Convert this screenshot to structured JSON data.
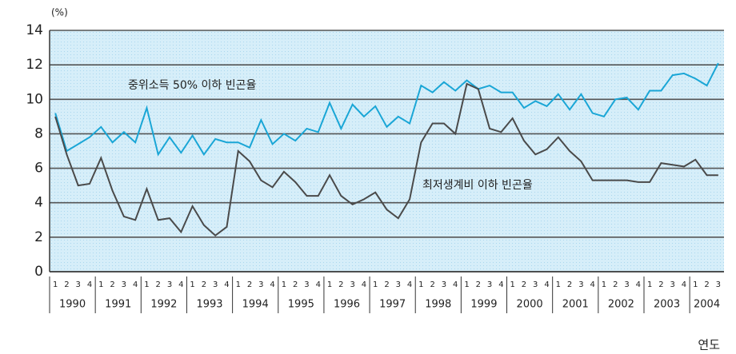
{
  "chart_data": {
    "type": "line",
    "y_unit": "(%)",
    "xlabel": "연도",
    "categories": [
      "1",
      "2",
      "3",
      "4",
      "1",
      "2",
      "3",
      "4",
      "1",
      "2",
      "3",
      "4",
      "1",
      "2",
      "3",
      "4",
      "1",
      "2",
      "3",
      "4",
      "1",
      "2",
      "3",
      "4",
      "1",
      "2",
      "3",
      "4",
      "1",
      "2",
      "3",
      "4",
      "1",
      "2",
      "3",
      "4",
      "1",
      "2",
      "3",
      "4",
      "1",
      "2",
      "3",
      "4",
      "1",
      "2",
      "3",
      "4",
      "1",
      "2",
      "3",
      "4",
      "1",
      "2",
      "3",
      "4",
      "1",
      "2",
      "3"
    ],
    "years": [
      "1990",
      "1991",
      "1992",
      "1993",
      "1994",
      "1995",
      "1996",
      "1997",
      "1998",
      "1999",
      "2000",
      "2001",
      "2002",
      "2003",
      "2004"
    ],
    "series": [
      {
        "name": "중위소득 50% 이하 빈곤율",
        "color": "#1aa6d6",
        "values": [
          9.2,
          7.0,
          7.4,
          7.8,
          8.4,
          7.5,
          8.1,
          7.5,
          9.5,
          6.8,
          7.8,
          6.9,
          7.9,
          6.8,
          7.7,
          7.5,
          7.5,
          7.2,
          8.8,
          7.4,
          8.0,
          7.6,
          8.3,
          8.1,
          9.8,
          8.3,
          9.7,
          9.0,
          9.6,
          8.4,
          9.0,
          8.6,
          10.8,
          10.4,
          11.0,
          10.5,
          11.1,
          10.6,
          10.8,
          10.4,
          10.4,
          9.5,
          9.9,
          9.6,
          10.3,
          9.4,
          10.3,
          9.2,
          9.0,
          10.0,
          10.1,
          9.4,
          10.5,
          10.5,
          11.4,
          11.5,
          11.2,
          10.8,
          12.1
        ]
      },
      {
        "name": "최저생계비 이하 빈곤율",
        "color": "#4a4a4a",
        "values": [
          9.0,
          6.8,
          5.0,
          5.1,
          6.6,
          4.7,
          3.2,
          3.0,
          4.8,
          3.0,
          3.1,
          2.3,
          3.8,
          2.7,
          2.1,
          2.6,
          7.0,
          6.4,
          5.3,
          4.9,
          5.8,
          5.2,
          4.4,
          4.4,
          5.6,
          4.4,
          3.9,
          4.2,
          4.6,
          3.6,
          3.1,
          4.2,
          7.5,
          8.6,
          8.6,
          8.0,
          10.9,
          10.6,
          8.3,
          8.1,
          8.9,
          7.6,
          6.8,
          7.1,
          7.8,
          7.0,
          6.4,
          5.3,
          5.3,
          5.3,
          5.3,
          5.2,
          5.2,
          6.3,
          6.2,
          6.1,
          6.5,
          5.6,
          5.6
        ]
      }
    ],
    "ylim": [
      0,
      14
    ],
    "yticks": [
      0,
      2,
      4,
      6,
      8,
      10,
      12,
      14
    ],
    "grid": true
  }
}
